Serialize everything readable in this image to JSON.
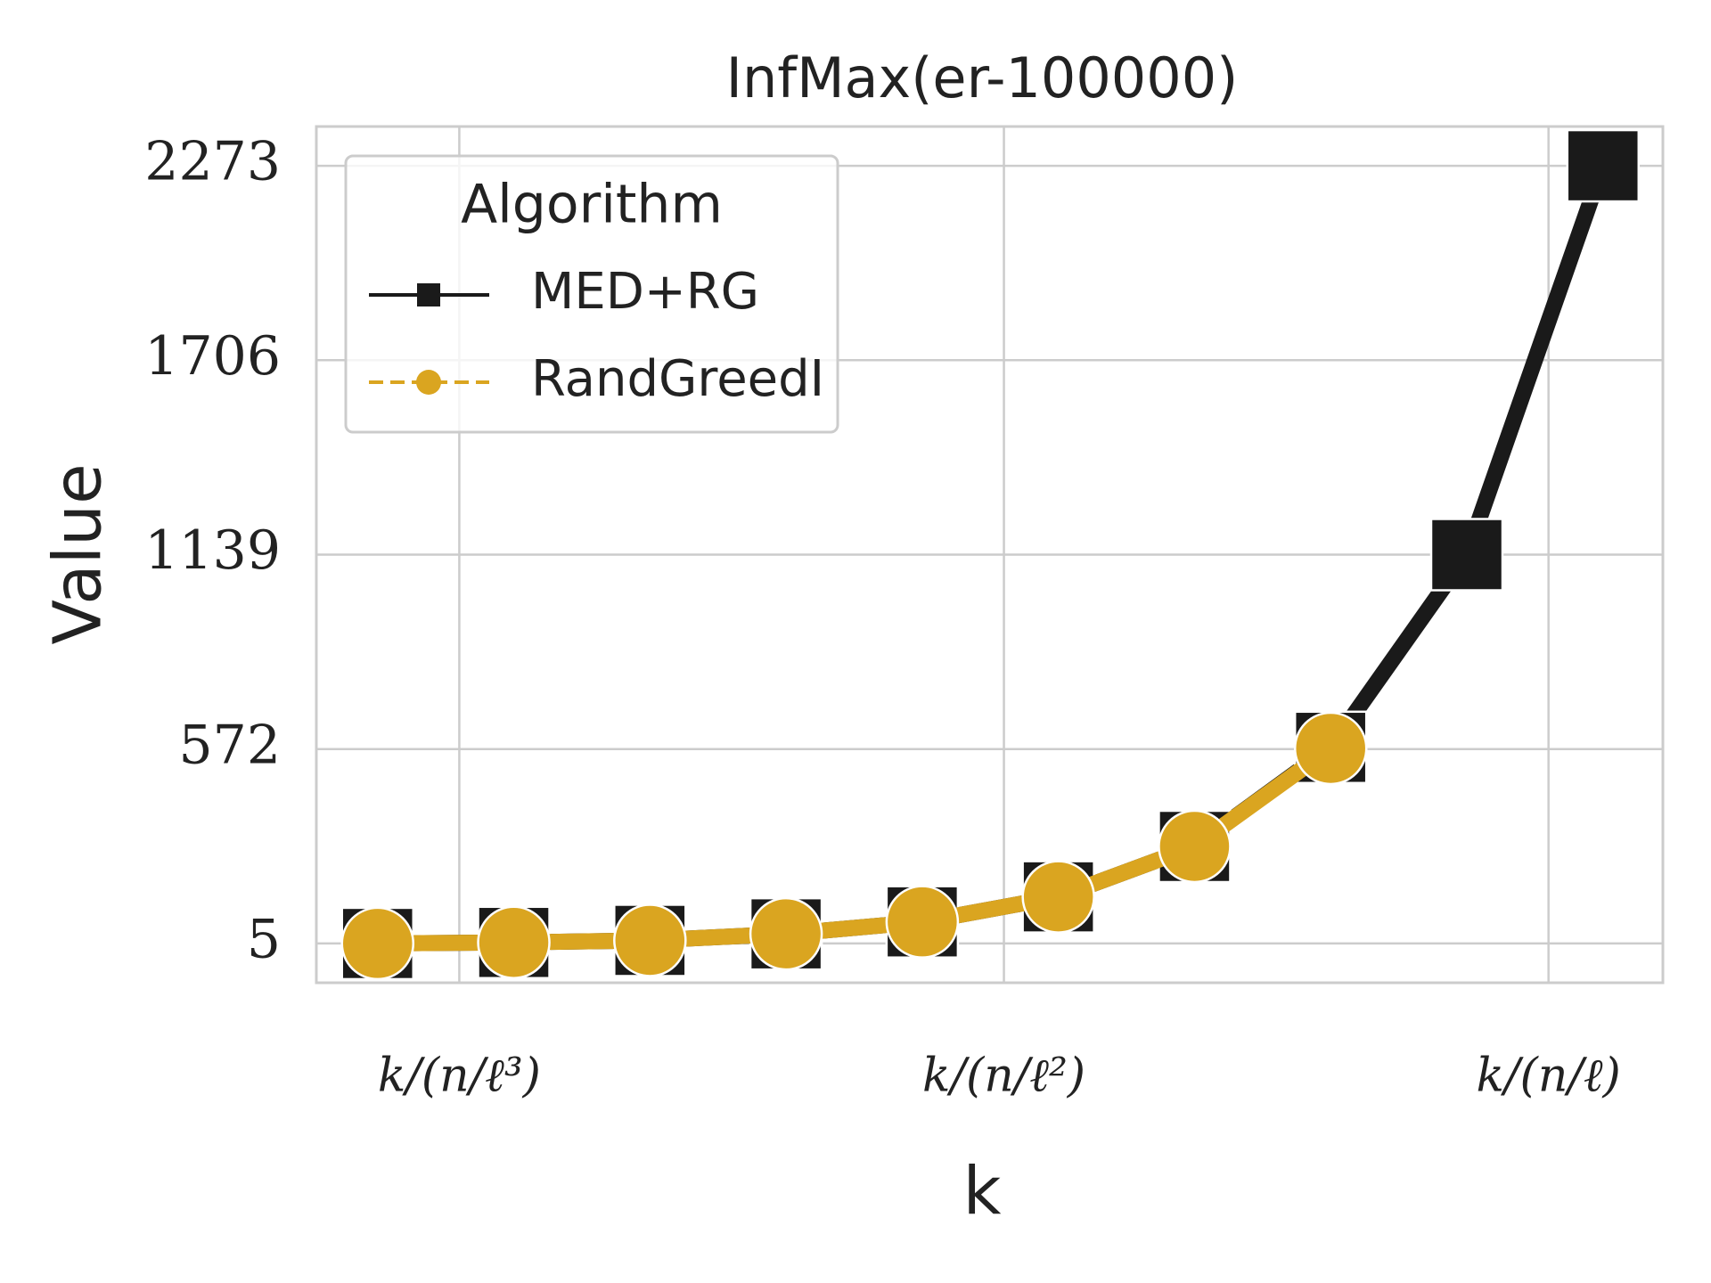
{
  "chart_data": {
    "type": "line",
    "title": "InfMax(er-100000)",
    "x_label": "k",
    "y_label": "Value",
    "x": [
      -0.6,
      0.4,
      1.4,
      2.4,
      3.4,
      4.4,
      5.4,
      6.4,
      7.4,
      8.4
    ],
    "series": [
      {
        "name": "MED+RG",
        "color": "#1a1a1a",
        "marker": "square",
        "values": [
          5,
          8,
          14,
          33,
          68,
          141,
          288,
          577,
          1139,
          2273
        ]
      },
      {
        "name": "RandGreedI",
        "color": "#daa520",
        "marker": "circle",
        "values": [
          5,
          8,
          14,
          33,
          68,
          141,
          288,
          574,
          null,
          null
        ]
      }
    ],
    "xlim": [
      -1.05,
      8.84
    ],
    "xticks": [
      {
        "value": 0,
        "label": "k/(n/ℓ³)"
      },
      {
        "value": 4,
        "label": "k/(n/ℓ²)"
      },
      {
        "value": 8,
        "label": "k/(n/ℓ)"
      }
    ],
    "ylim": [
      -109.5,
      2387.5
    ],
    "yticks": [
      5,
      572,
      1139,
      1706,
      2273
    ],
    "grid": true,
    "legend": {
      "title": "Algorithm",
      "position": "upper left"
    }
  }
}
